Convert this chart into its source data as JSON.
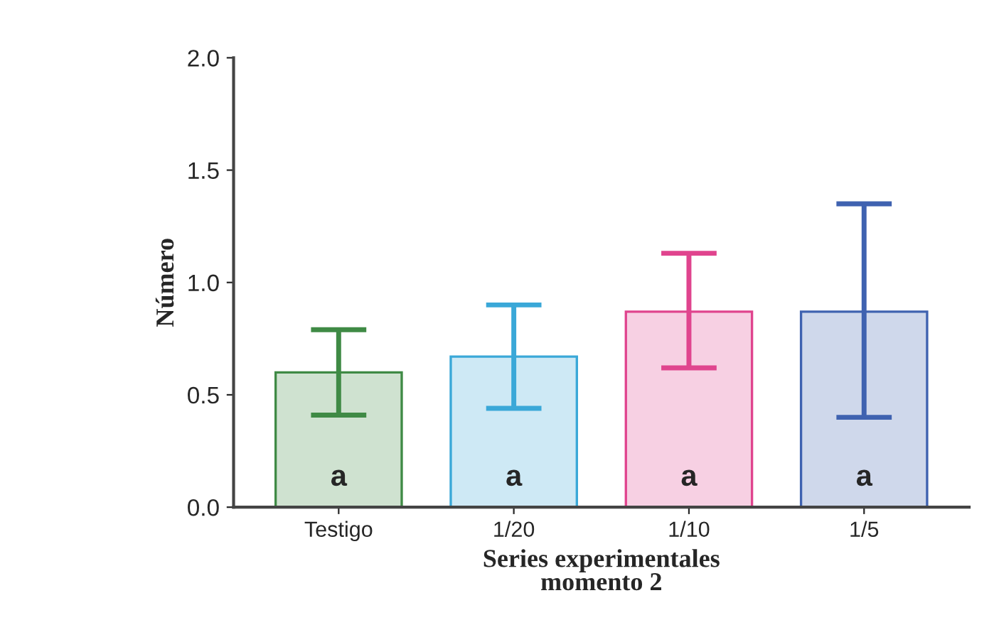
{
  "chart_data": {
    "type": "bar",
    "categories": [
      "Testigo",
      "1/20",
      "1/10",
      "1/5"
    ],
    "values": [
      0.6,
      0.67,
      0.87,
      0.87
    ],
    "errors": [
      [
        0.41,
        0.79
      ],
      [
        0.44,
        0.9
      ],
      [
        0.62,
        1.13
      ],
      [
        0.4,
        1.35
      ]
    ],
    "colors": [
      "#3f8a45",
      "#3aa8d8",
      "#e0448e",
      "#3f62b0"
    ],
    "xlabel": "Series experimentales\nmomento 2",
    "ylabel": "Número",
    "ylim": [
      0,
      2.0
    ],
    "yticks": [
      {
        "value": 0,
        "label": "0.0"
      },
      {
        "value": 0.5,
        "label": "0.5"
      },
      {
        "value": 1.0,
        "label": "1.0"
      },
      {
        "value": 1.5,
        "label": "1.5"
      },
      {
        "value": 2.0,
        "label": "2.0"
      }
    ],
    "annotations": [
      "a",
      "a",
      "a",
      "a"
    ],
    "grid": false,
    "legend": false
  }
}
